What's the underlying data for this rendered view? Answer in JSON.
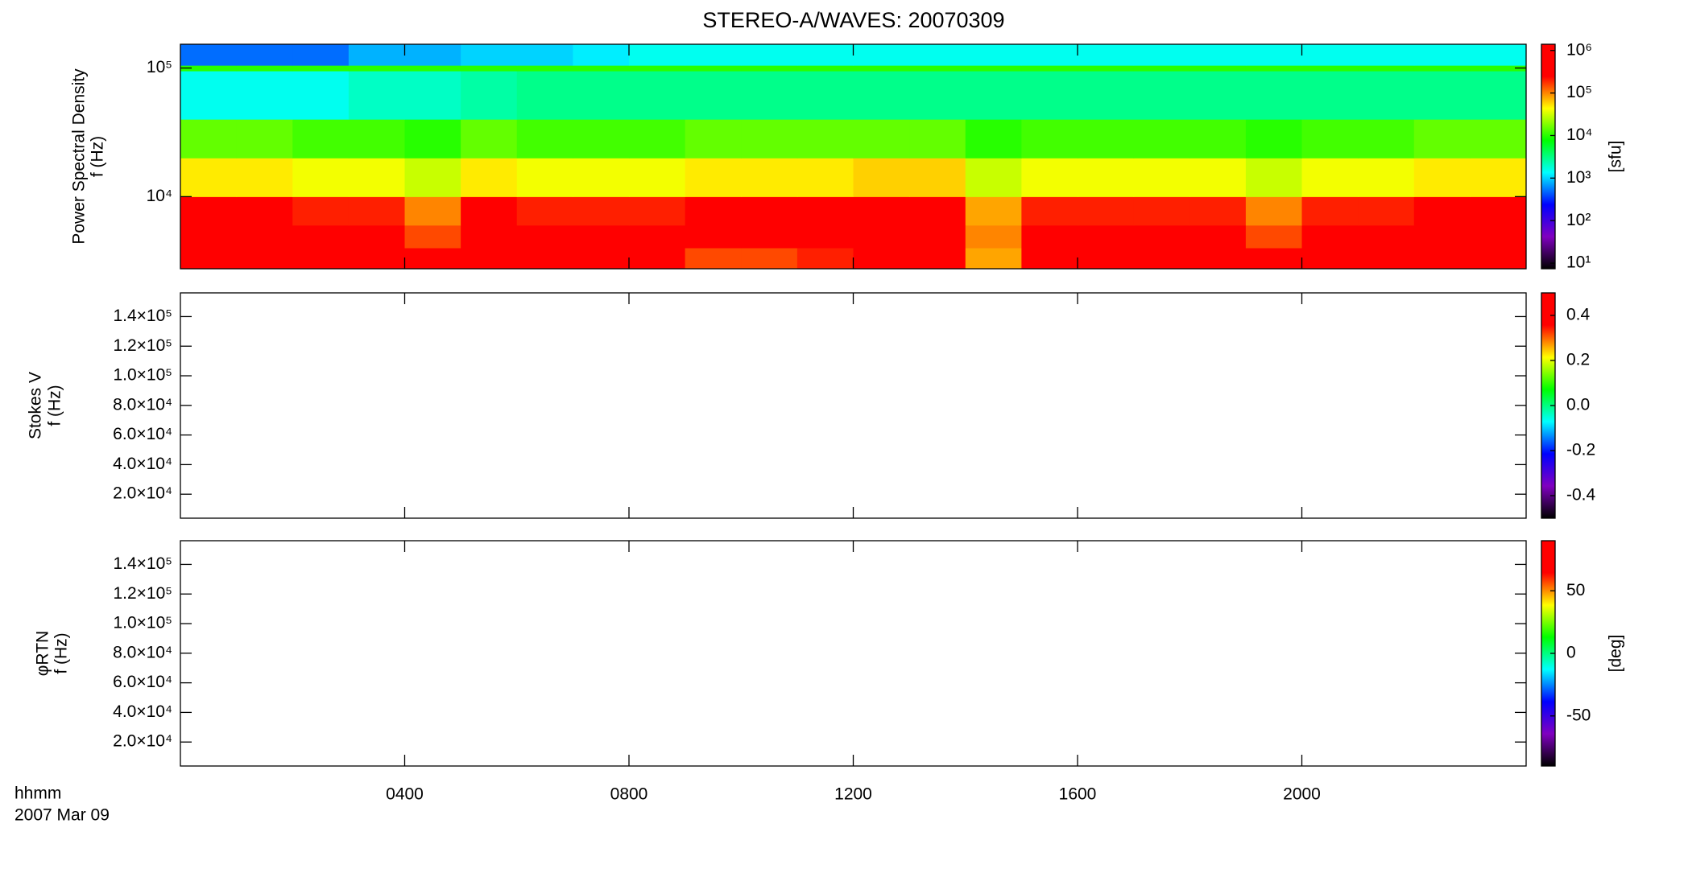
{
  "chart_data": [
    {
      "type": "heatmap",
      "title": "STEREO-A/WAVES: 20070309",
      "ylabel": [
        "Power Spectral Density",
        "f (Hz)"
      ],
      "xlim": [
        0,
        24
      ],
      "xticks": [
        4,
        8,
        12,
        16,
        20
      ],
      "ylim": [
        2750,
        153000
      ],
      "ylog": true,
      "yticks": [
        {
          "value": 10000,
          "label": "10⁴"
        },
        {
          "value": 100000,
          "label": "10⁵"
        }
      ],
      "xbins": [
        0,
        1,
        2,
        3,
        4,
        5,
        6,
        7,
        8,
        9,
        10,
        11,
        12,
        13,
        14,
        15,
        16,
        17,
        18,
        19,
        20,
        21,
        22,
        23,
        24
      ],
      "ybins": [
        2750,
        4000,
        6000,
        10000,
        20000,
        40000,
        95000,
        105000,
        153000
      ],
      "z": [
        [
          1000000,
          1000000,
          1000000,
          1000000,
          400000,
          1000000,
          1000000,
          1000000,
          1000000,
          150000,
          150000,
          200000,
          1000000,
          1000000,
          80000,
          1000000,
          1000000,
          1000000,
          1000000,
          400000,
          1000000,
          1000000,
          1000000,
          1000000
        ],
        [
          600000,
          600000,
          500000,
          400000,
          150000,
          600000,
          500000,
          500000,
          500000,
          800000,
          800000,
          800000,
          800000,
          800000,
          100000,
          600000,
          500000,
          500000,
          400000,
          150000,
          400000,
          500000,
          800000,
          800000
        ],
        [
          300000,
          300000,
          200000,
          200000,
          100000,
          300000,
          200000,
          200000,
          200000,
          300000,
          300000,
          300000,
          400000,
          400000,
          80000,
          200000,
          200000,
          200000,
          200000,
          100000,
          200000,
          200000,
          400000,
          400000
        ],
        [
          50000,
          50000,
          40000,
          40000,
          30000,
          50000,
          40000,
          40000,
          40000,
          50000,
          50000,
          50000,
          60000,
          60000,
          30000,
          40000,
          40000,
          40000,
          40000,
          30000,
          40000,
          40000,
          50000,
          50000
        ],
        [
          15000,
          15000,
          12000,
          12000,
          10000,
          15000,
          12000,
          12000,
          12000,
          15000,
          15000,
          15000,
          15000,
          15000,
          10000,
          12000,
          12000,
          12000,
          12000,
          10000,
          12000,
          12000,
          15000,
          15000
        ],
        [
          1500,
          1500,
          1500,
          2000,
          2000,
          2500,
          3000,
          3000,
          3000,
          3000,
          3000,
          3000,
          3000,
          3000,
          3000,
          3000,
          3000,
          3000,
          3000,
          3000,
          3000,
          3000,
          3000,
          3000
        ],
        [
          10000,
          10000,
          10000,
          10000,
          10000,
          10000,
          10000,
          10000,
          10000,
          10000,
          10000,
          10000,
          10000,
          10000,
          10000,
          10000,
          10000,
          10000,
          10000,
          10000,
          10000,
          10000,
          10000,
          10000
        ],
        [
          500,
          500,
          500,
          800,
          800,
          1000,
          1000,
          1200,
          1500,
          1500,
          1500,
          1500,
          1500,
          1500,
          1500,
          1500,
          1500,
          1500,
          1500,
          1500,
          1500,
          1500,
          1500,
          1500
        ]
      ],
      "colormap": [
        "#000000",
        "#8000c0",
        "#0000ff",
        "#00ffff",
        "#00ff00",
        "#ffff00",
        "#ff0000",
        "#ff0000"
      ],
      "colorbar": {
        "label": "[sfu]",
        "lim": [
          7.4,
          1400000
        ],
        "log": true,
        "ticks": [
          {
            "value": 10,
            "label": "10¹"
          },
          {
            "value": 100,
            "label": "10²"
          },
          {
            "value": 1000,
            "label": "10³"
          },
          {
            "value": 10000,
            "label": "10⁴"
          },
          {
            "value": 100000,
            "label": "10⁵"
          },
          {
            "value": 1000000,
            "label": "10⁶"
          }
        ]
      }
    },
    {
      "type": "heatmap",
      "ylabel": [
        "Stokes V",
        "f (Hz)"
      ],
      "xlim": [
        0,
        24
      ],
      "xticks": [
        4,
        8,
        12,
        16,
        20
      ],
      "ylim": [
        3800,
        156000
      ],
      "yticks": [
        {
          "value": 20000,
          "label": "2.0×10⁴"
        },
        {
          "value": 40000,
          "label": "4.0×10⁴"
        },
        {
          "value": 60000,
          "label": "6.0×10⁴"
        },
        {
          "value": 80000,
          "label": "8.0×10⁴"
        },
        {
          "value": 100000,
          "label": "1.0×10⁵"
        },
        {
          "value": 120000,
          "label": "1.2×10⁵"
        },
        {
          "value": 140000,
          "label": "1.4×10⁵"
        }
      ],
      "colormap": [
        "#000000",
        "#8000c0",
        "#0000ff",
        "#00ffff",
        "#00ff00",
        "#ffff00",
        "#ff0000",
        "#ff0000"
      ],
      "colorbar": {
        "lim": [
          -0.5,
          0.5
        ],
        "ticks": [
          -0.4,
          -0.2,
          {
            "value": 0,
            "label": "0.0"
          },
          0.2,
          0.4
        ]
      }
    },
    {
      "type": "heatmap",
      "ylabel": [
        "φRTN",
        "f (Hz)"
      ],
      "xlabel": [
        "hhmm",
        "2007 Mar 09"
      ],
      "xlim": [
        0,
        24
      ],
      "xticks": [
        {
          "value": 4,
          "label": "0400"
        },
        {
          "value": 8,
          "label": "0800"
        },
        {
          "value": 12,
          "label": "1200"
        },
        {
          "value": 16,
          "label": "1600"
        },
        {
          "value": 20,
          "label": "2000"
        }
      ],
      "ylim": [
        3800,
        156000
      ],
      "yticks": [
        {
          "value": 20000,
          "label": "2.0×10⁴"
        },
        {
          "value": 40000,
          "label": "4.0×10⁴"
        },
        {
          "value": 60000,
          "label": "6.0×10⁴"
        },
        {
          "value": 80000,
          "label": "8.0×10⁴"
        },
        {
          "value": 100000,
          "label": "1.0×10⁵"
        },
        {
          "value": 120000,
          "label": "1.2×10⁵"
        },
        {
          "value": 140000,
          "label": "1.4×10⁵"
        }
      ],
      "colormap": [
        "#000000",
        "#8000c0",
        "#0000ff",
        "#00ffff",
        "#00ff00",
        "#ffff00",
        "#ff0000",
        "#ff0000"
      ],
      "colorbar": {
        "label": "[deg]",
        "lim": [
          -90,
          90
        ],
        "ticks": [
          -50,
          0,
          50
        ]
      }
    }
  ]
}
